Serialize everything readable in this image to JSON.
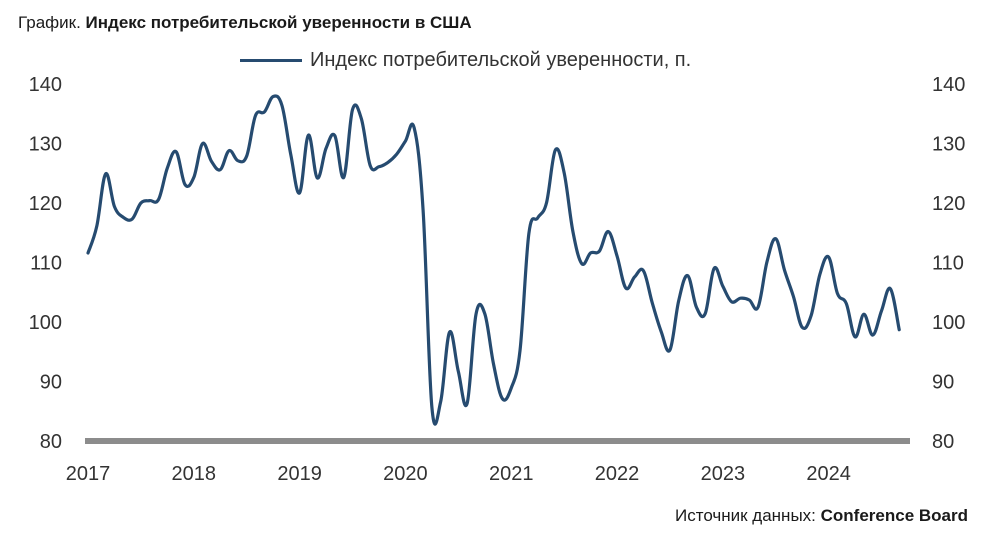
{
  "header": {
    "prefix": "График.",
    "title": "Индекс потребительской уверенности в США"
  },
  "footer": {
    "source_label": "Источник данных:",
    "source_name": "Conference Board"
  },
  "colors": {
    "line": "#264b70",
    "baseline": "#8c8c8c",
    "text": "#333333"
  },
  "chart_data": {
    "type": "line",
    "title": "Индекс потребительской уверенности в США",
    "legend_position": "top",
    "grid": false,
    "series": [
      {
        "name": "Индекс потребительской уверенности, п.",
        "x": [
          2017.0,
          2017.083,
          2017.167,
          2017.25,
          2017.333,
          2017.417,
          2017.5,
          2017.583,
          2017.667,
          2017.75,
          2017.833,
          2017.917,
          2018.0,
          2018.083,
          2018.167,
          2018.25,
          2018.333,
          2018.417,
          2018.5,
          2018.583,
          2018.667,
          2018.75,
          2018.833,
          2018.917,
          2019.0,
          2019.083,
          2019.167,
          2019.25,
          2019.333,
          2019.417,
          2019.5,
          2019.583,
          2019.667,
          2019.75,
          2019.833,
          2019.917,
          2020.0,
          2020.083,
          2020.167,
          2020.25,
          2020.333,
          2020.417,
          2020.5,
          2020.583,
          2020.667,
          2020.75,
          2020.833,
          2020.917,
          2021.0,
          2021.083,
          2021.167,
          2021.25,
          2021.333,
          2021.417,
          2021.5,
          2021.583,
          2021.667,
          2021.75,
          2021.833,
          2021.917,
          2022.0,
          2022.083,
          2022.167,
          2022.25,
          2022.333,
          2022.417,
          2022.5,
          2022.583,
          2022.667,
          2022.75,
          2022.833,
          2022.917,
          2023.0,
          2023.083,
          2023.167,
          2023.25,
          2023.333,
          2023.417,
          2023.5,
          2023.583,
          2023.667,
          2023.75,
          2023.833,
          2023.917,
          2024.0,
          2024.083,
          2024.167,
          2024.25,
          2024.333,
          2024.417,
          2024.5,
          2024.583,
          2024.667
        ],
        "values": [
          111.6,
          116.1,
          124.9,
          119.4,
          117.6,
          117.3,
          120.0,
          120.4,
          120.6,
          125.9,
          128.6,
          123.1,
          124.3,
          130.0,
          127.0,
          125.6,
          128.8,
          127.1,
          127.9,
          134.7,
          135.3,
          137.9,
          136.4,
          128.1,
          121.7,
          131.4,
          124.2,
          129.2,
          131.3,
          124.3,
          135.7,
          134.2,
          126.3,
          126.1,
          126.8,
          128.2,
          130.4,
          132.6,
          118.8,
          85.7,
          86.6,
          98.3,
          91.7,
          86.3,
          101.3,
          101.4,
          92.9,
          87.1,
          88.9,
          95.2,
          114.9,
          117.5,
          120.0,
          128.9,
          125.1,
          115.2,
          109.8,
          111.6,
          111.9,
          115.2,
          111.1,
          105.7,
          107.6,
          108.6,
          103.2,
          98.4,
          95.3,
          103.6,
          107.8,
          102.5,
          101.4,
          109.0,
          106.0,
          103.4,
          104.0,
          103.7,
          102.5,
          110.1,
          114.0,
          108.7,
          104.3,
          99.1,
          101.0,
          108.0,
          110.9,
          104.8,
          103.1,
          97.5,
          101.3,
          97.8,
          101.9,
          105.6,
          98.7
        ]
      }
    ],
    "xlim": [
      2017,
      2024.75
    ],
    "x_ticks": [
      "2017",
      "2018",
      "2019",
      "2020",
      "2021",
      "2022",
      "2023",
      "2024"
    ],
    "ylim": [
      80,
      140
    ],
    "y_ticks": [
      80,
      90,
      100,
      110,
      120,
      130,
      140
    ]
  }
}
